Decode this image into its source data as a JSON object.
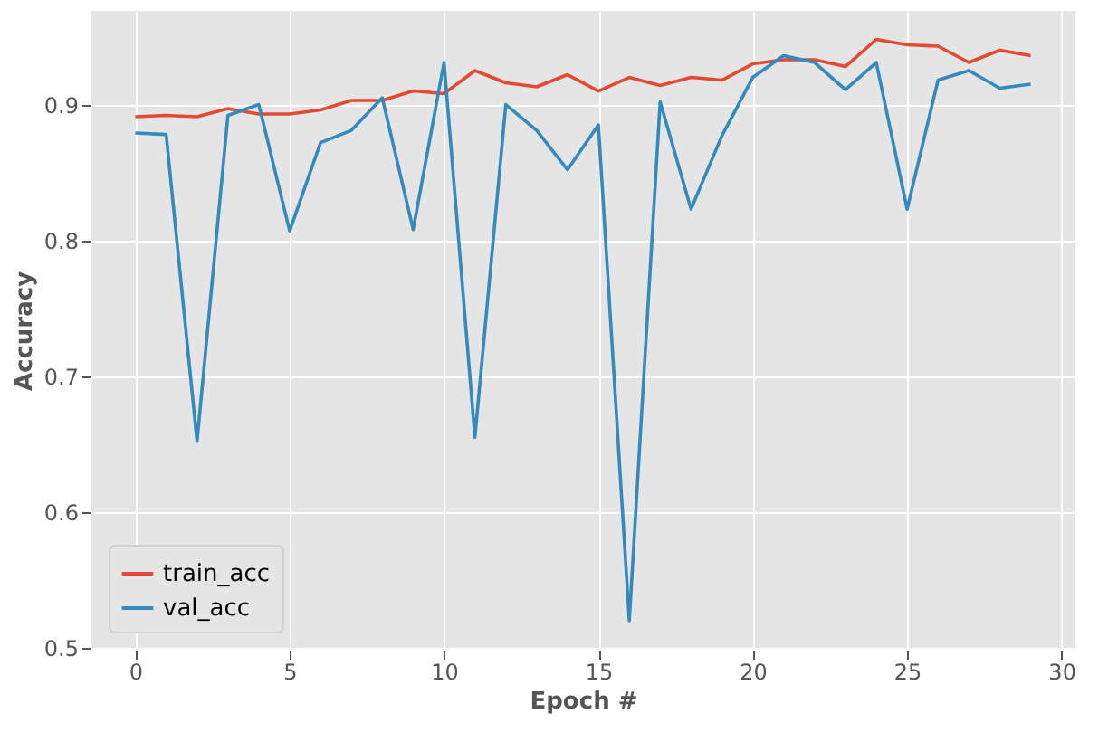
{
  "chart_data": {
    "type": "line",
    "xlabel": "Epoch #",
    "ylabel": "Accuracy",
    "x": [
      0,
      1,
      2,
      3,
      4,
      5,
      6,
      7,
      8,
      9,
      10,
      11,
      12,
      13,
      14,
      15,
      16,
      17,
      18,
      19,
      20,
      21,
      22,
      23,
      24,
      25,
      26,
      27,
      28,
      29
    ],
    "series": [
      {
        "name": "train_acc",
        "color": "#e24a33",
        "values": [
          0.891,
          0.892,
          0.891,
          0.897,
          0.893,
          0.893,
          0.896,
          0.903,
          0.903,
          0.91,
          0.908,
          0.925,
          0.916,
          0.913,
          0.922,
          0.91,
          0.92,
          0.914,
          0.92,
          0.918,
          0.93,
          0.933,
          0.933,
          0.928,
          0.948,
          0.944,
          0.943,
          0.931,
          0.94,
          0.936
        ]
      },
      {
        "name": "val_acc",
        "color": "#348abd",
        "values": [
          0.879,
          0.878,
          0.652,
          0.892,
          0.9,
          0.807,
          0.872,
          0.881,
          0.905,
          0.808,
          0.931,
          0.655,
          0.9,
          0.881,
          0.852,
          0.885,
          0.52,
          0.902,
          0.823,
          0.877,
          0.92,
          0.936,
          0.931,
          0.911,
          0.931,
          0.823,
          0.918,
          0.925,
          0.912,
          0.915
        ]
      }
    ],
    "xlim": [
      -1.45,
      30.45
    ],
    "xticks": [
      0,
      5,
      10,
      15,
      20,
      25,
      30
    ],
    "ylim": [
      0.4986,
      0.969
    ],
    "yticks": [
      0.5,
      0.6,
      0.7,
      0.8,
      0.9
    ],
    "grid": true,
    "legend": "bottom left",
    "marker": "none",
    "line_style": "solid"
  }
}
